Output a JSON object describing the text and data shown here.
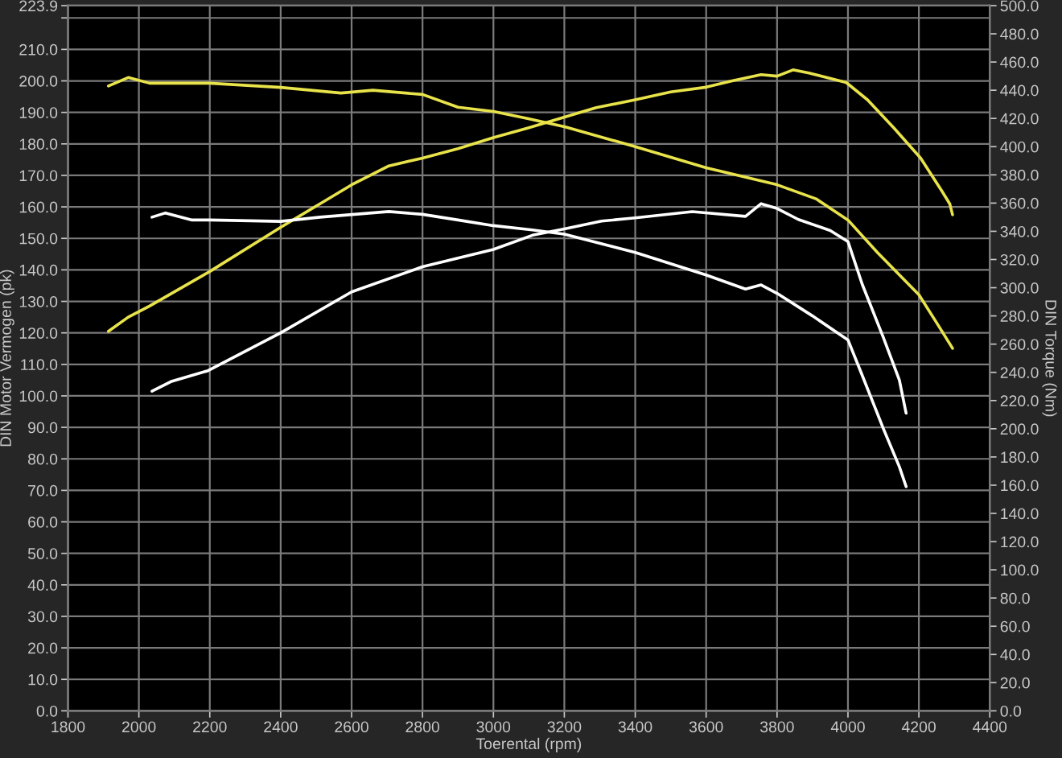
{
  "chart_data": {
    "type": "line",
    "xlabel": "Toerental (rpm)",
    "ylabel": "DIN Motor Vermogen (pk)",
    "y2label": "DIN Torque (Nm)",
    "xlim": [
      1800,
      4400
    ],
    "xticks": [
      1800,
      2000,
      2200,
      2400,
      2600,
      2800,
      3000,
      3200,
      3400,
      3600,
      3800,
      4000,
      4200,
      4400
    ],
    "ylim": [
      0,
      223.9
    ],
    "yticks": [
      {
        "value": 0,
        "label": "0.0"
      },
      {
        "value": 10,
        "label": "10.0"
      },
      {
        "value": 20,
        "label": "20.0"
      },
      {
        "value": 30,
        "label": "30.0"
      },
      {
        "value": 40,
        "label": "40.0"
      },
      {
        "value": 50,
        "label": "50.0"
      },
      {
        "value": 60,
        "label": "60.0"
      },
      {
        "value": 70,
        "label": "70.0"
      },
      {
        "value": 80,
        "label": "80.0"
      },
      {
        "value": 90,
        "label": "90.0"
      },
      {
        "value": 100,
        "label": "100.0"
      },
      {
        "value": 110,
        "label": "110.0"
      },
      {
        "value": 120,
        "label": "120.0"
      },
      {
        "value": 130,
        "label": "130.0"
      },
      {
        "value": 140,
        "label": "140.0"
      },
      {
        "value": 150,
        "label": "150.0"
      },
      {
        "value": 160,
        "label": "160.0"
      },
      {
        "value": 170,
        "label": "170.0"
      },
      {
        "value": 180,
        "label": "180.0"
      },
      {
        "value": 190,
        "label": "190.0"
      },
      {
        "value": 200,
        "label": "200.0"
      },
      {
        "value": 210,
        "label": "210.0"
      },
      {
        "value": 220,
        "label": null
      },
      {
        "value": 223.9,
        "label": "223.9"
      }
    ],
    "y2lim": [
      0,
      500
    ],
    "y2ticks": [
      {
        "value": 0,
        "label": "0.0"
      },
      {
        "value": 20,
        "label": "20.0"
      },
      {
        "value": 40,
        "label": "40.0"
      },
      {
        "value": 60,
        "label": "60.0"
      },
      {
        "value": 80,
        "label": "80.0"
      },
      {
        "value": 100,
        "label": "100.0"
      },
      {
        "value": 120,
        "label": "120.0"
      },
      {
        "value": 140,
        "label": "140.0"
      },
      {
        "value": 160,
        "label": "160.0"
      },
      {
        "value": 180,
        "label": "180.0"
      },
      {
        "value": 200,
        "label": "200.0"
      },
      {
        "value": 220,
        "label": "220.0"
      },
      {
        "value": 240,
        "label": "240.0"
      },
      {
        "value": 260,
        "label": "260.0"
      },
      {
        "value": 280,
        "label": "280.0"
      },
      {
        "value": 300,
        "label": "300.0"
      },
      {
        "value": 320,
        "label": "320.0"
      },
      {
        "value": 340,
        "label": "340.0"
      },
      {
        "value": 360,
        "label": "360.0"
      },
      {
        "value": 380,
        "label": "380.0"
      },
      {
        "value": 400,
        "label": "400.0"
      },
      {
        "value": 420,
        "label": "420.0"
      },
      {
        "value": 440,
        "label": "440.0"
      },
      {
        "value": 460,
        "label": "460.0"
      },
      {
        "value": 480,
        "label": "480.0"
      },
      {
        "value": 500,
        "label": "500.0"
      }
    ],
    "grid": true,
    "series": [
      {
        "color": "#e8e34a",
        "x": [
          1914,
          1970,
          2030,
          2200,
          2400,
          2511,
          2600,
          2705,
          2800,
          2900,
          3000,
          3096,
          3290,
          3400,
          3500,
          3600,
          3673,
          3755,
          3800,
          3845,
          3890,
          3995,
          4055,
          4130,
          4205,
          4265,
          4287,
          4295
        ],
        "values": [
          120.5,
          125,
          128.5,
          139.5,
          153.5,
          161,
          167,
          173,
          175.5,
          178.5,
          182,
          185,
          191.5,
          194,
          196.5,
          198,
          200,
          202,
          201.5,
          203.5,
          202.5,
          199.5,
          194,
          185,
          175.5,
          165,
          161,
          157.5
        ]
      },
      {
        "color": "#e8e34a",
        "axis": "y2",
        "x": [
          1914,
          1970,
          2030,
          2200,
          2400,
          2570,
          2660,
          2800,
          2900,
          3000,
          3096,
          3203,
          3400,
          3600,
          3650,
          3800,
          3910,
          4000,
          4083,
          4200,
          4248,
          4295
        ],
        "values": [
          443,
          449,
          445,
          445,
          442,
          438,
          440,
          437,
          428,
          425,
          420,
          414,
          400,
          385,
          382,
          373,
          363,
          348,
          325,
          295,
          276,
          257
        ]
      },
      {
        "color": "#ffffff",
        "x": [
          2037,
          2090,
          2195,
          2400,
          2600,
          2800,
          3000,
          3110,
          3200,
          3305,
          3400,
          3561,
          3711,
          3755,
          3800,
          3860,
          3950,
          4000,
          4040,
          4100,
          4145,
          4164
        ],
        "values": [
          101.5,
          104.5,
          108,
          120,
          133,
          141,
          146.5,
          151,
          153,
          155.5,
          156.5,
          158.5,
          157,
          161,
          159.5,
          156,
          152.5,
          149,
          135.5,
          118.5,
          105,
          94.5
        ]
      },
      {
        "color": "#ffffff",
        "axis": "y2",
        "x": [
          2037,
          2075,
          2150,
          2200,
          2400,
          2511,
          2705,
          2800,
          2900,
          3000,
          3110,
          3200,
          3400,
          3600,
          3711,
          3755,
          3800,
          3900,
          4000,
          4040,
          4100,
          4145,
          4164
        ],
        "values": [
          350,
          353,
          348,
          348,
          347,
          350,
          354,
          352,
          348,
          344,
          341,
          338,
          325,
          309,
          299,
          302,
          296,
          280,
          263,
          238,
          200,
          173,
          159
        ]
      }
    ]
  }
}
